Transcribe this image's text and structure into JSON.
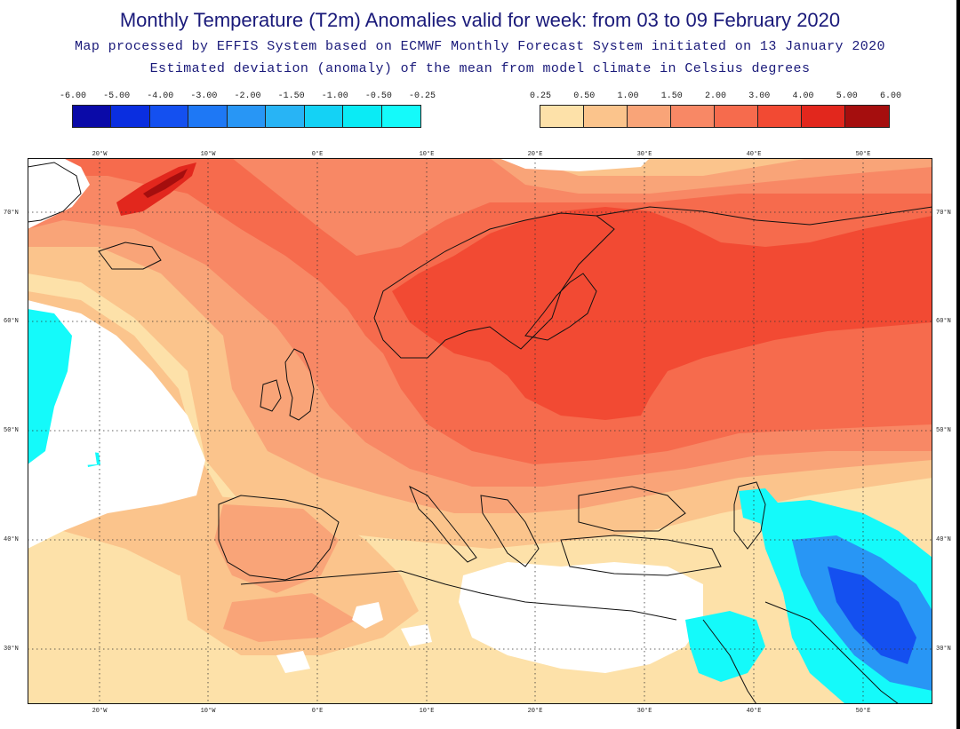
{
  "title": "Monthly Temperature (T2m) Anomalies valid for week: from 03 to 09 February 2020",
  "subtitle1": "Map processed by EFFIS System based on ECMWF Monthly Forecast System initiated on 13 January 2020",
  "subtitle2": "Estimated deviation (anomaly) of the mean from model climate in Celsius degrees",
  "legend_negative": {
    "labels": [
      "-6.00",
      "-5.00",
      "-4.00",
      "-3.00",
      "-2.00",
      "-1.50",
      "-1.00",
      "-0.50",
      "-0.25"
    ],
    "colors": [
      "#0a0aa8",
      "#0a2ee0",
      "#1450f0",
      "#1e78f5",
      "#2896f5",
      "#28b4f5",
      "#14d2f5",
      "#0aebf5",
      "#14fafa"
    ]
  },
  "legend_positive": {
    "labels": [
      "0.25",
      "0.50",
      "1.00",
      "1.50",
      "2.00",
      "3.00",
      "4.00",
      "5.00",
      "6.00"
    ],
    "colors": [
      "#fde1a9",
      "#fbc48c",
      "#f9a478",
      "#f88865",
      "#f66b4d",
      "#f24a33",
      "#e2271d",
      "#a50e0e"
    ]
  },
  "longitude_labels": [
    "20°W",
    "10°W",
    "0°E",
    "10°E",
    "20°E",
    "30°E",
    "40°E",
    "50°E"
  ],
  "latitude_labels": [
    "70°N",
    "60°N",
    "50°N",
    "40°N",
    "30°N"
  ],
  "map_colors": {
    "ocean_base": "#fde1a9",
    "light_orange": "#fbc48c",
    "orange": "#f9a478",
    "salmon": "#f88865",
    "red_orange": "#f66b4d",
    "red": "#f24a33",
    "dark_red": "#e2271d",
    "white": "#ffffff",
    "cyan": "#14fafa",
    "light_blue": "#2896f5",
    "blue": "#1450f0"
  }
}
